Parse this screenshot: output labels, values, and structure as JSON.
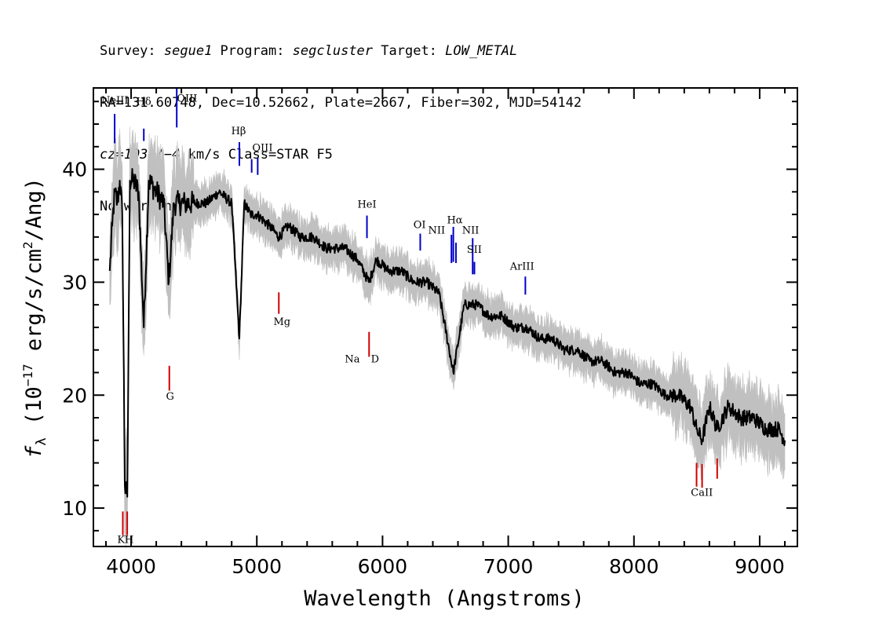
{
  "header": {
    "line1": {
      "survey_label": "Survey: ",
      "survey": "segue1",
      "program_label": " Program: ",
      "program": "segcluster",
      "target_label": " Target: ",
      "target": "LOW_METAL"
    },
    "line2": "RA=131.60748, Dec=10.52662, Plate=2667, Fiber=302, MJD=54142",
    "line3": {
      "cz": "cz=103+/−4",
      "rest": " km/s Class=STAR F5"
    },
    "line4": "No warnings."
  },
  "colors": {
    "spectrum": "#000000",
    "error": "#c0c0c0",
    "emission": "#0000c8",
    "absorption": "#d00000"
  },
  "chart_data": {
    "type": "line",
    "xlabel": "Wavelength (Angstroms)",
    "ylabel_prefix": "f",
    "ylabel_sub": "λ",
    "ylabel_open": " (10",
    "ylabel_exp": "−17",
    "ylabel_mid": " erg/s/cm",
    "ylabel_exp2": "2",
    "ylabel_close": "/Ang)",
    "xlim": [
      3700,
      9300
    ],
    "ylim": [
      6.6,
      47.2
    ],
    "xticks": [
      4000,
      5000,
      6000,
      7000,
      8000,
      9000
    ],
    "xtick_labels": [
      "4000",
      "5000",
      "6000",
      "7000",
      "8000",
      "9000"
    ],
    "yticks": [
      10,
      20,
      30,
      40
    ],
    "ytick_labels": [
      "10",
      "20",
      "30",
      "40"
    ],
    "series": [
      {
        "role": "flux",
        "x": [
          3830,
          3850,
          3870,
          3890,
          3910,
          3930,
          3950,
          3970,
          3990,
          4020,
          4060,
          4101,
          4140,
          4200,
          4260,
          4300,
          4340,
          4380,
          4430,
          4500,
          4600,
          4700,
          4800,
          4861,
          4900,
          4950,
          5000,
          5100,
          5175,
          5250,
          5350,
          5450,
          5550,
          5600,
          5700,
          5800,
          5893,
          5950,
          6050,
          6150,
          6250,
          6350,
          6450,
          6563,
          6650,
          6750,
          6850,
          6950,
          7050,
          7150,
          7250,
          7350,
          7450,
          7550,
          7650,
          7750,
          7850,
          7950,
          8050,
          8150,
          8250,
          8350,
          8450,
          8498,
          8542,
          8600,
          8662,
          8750,
          8850,
          8950,
          9050,
          9150,
          9200
        ],
        "y": [
          31,
          35,
          38,
          37,
          39,
          36,
          12,
          11,
          39,
          39,
          38,
          26,
          39,
          38,
          37,
          30,
          37,
          37,
          37,
          37,
          37,
          38,
          37,
          25,
          37,
          36,
          36,
          35,
          34,
          35,
          34,
          34,
          33,
          33,
          33,
          32,
          30,
          32,
          31,
          31,
          30,
          30,
          29,
          22,
          28,
          28,
          27,
          27,
          26,
          26,
          25,
          25,
          24,
          24,
          23,
          23,
          22,
          22,
          21,
          21,
          20,
          20,
          19,
          17,
          16,
          19,
          17,
          19,
          18,
          18,
          17,
          17,
          16
        ]
      }
    ],
    "line_ids": [
      {
        "label": "NeIII",
        "x": 3869,
        "y0": 42.3,
        "y1": 44.9,
        "kind": "emission"
      },
      {
        "label": "Hδ",
        "x": 4101,
        "y0": 42.5,
        "y1": 43.6,
        "kind": "emission"
      },
      {
        "label": "OIII",
        "x": 4363,
        "y0": 43.7,
        "y1": 47.2,
        "kind": "emission"
      },
      {
        "label": "Hβ",
        "x": 4861,
        "y0": 40.3,
        "y1": 42.4,
        "kind": "emission"
      },
      {
        "label": "OIII",
        "x": 4959,
        "y0": 39.7,
        "y1": 40.9,
        "kind": "emission"
      },
      {
        "label": "OIII",
        "x": 5007,
        "y0": 39.5,
        "y1": 41.0,
        "kind": "emission"
      },
      {
        "label": "HeI",
        "x": 5876,
        "y0": 33.9,
        "y1": 35.9,
        "kind": "emission"
      },
      {
        "label": "OI",
        "x": 6300,
        "y0": 32.8,
        "y1": 34.3,
        "kind": "emission"
      },
      {
        "label": "NII",
        "x": 6548,
        "y0": 31.7,
        "y1": 34.2,
        "kind": "emission"
      },
      {
        "label": "Hα",
        "x": 6563,
        "y0": 31.8,
        "y1": 34.9,
        "kind": "emission"
      },
      {
        "label": "NII",
        "x": 6584,
        "y0": 31.7,
        "y1": 33.5,
        "kind": "emission"
      },
      {
        "label": "SII",
        "x": 6717,
        "y0": 30.7,
        "y1": 33.9,
        "kind": "emission"
      },
      {
        "label": "SII",
        "x": 6731,
        "y0": 30.7,
        "y1": 31.8,
        "kind": "emission"
      },
      {
        "label": "ArIII",
        "x": 7136,
        "y0": 28.9,
        "y1": 30.5,
        "kind": "emission"
      },
      {
        "label": "K",
        "x": 3934,
        "y0": 7.6,
        "y1": 9.7,
        "kind": "absorption"
      },
      {
        "label": "H",
        "x": 3969,
        "y0": 7.6,
        "y1": 9.7,
        "kind": "absorption"
      },
      {
        "label": "G",
        "x": 4304,
        "y0": 20.4,
        "y1": 22.6,
        "kind": "absorption"
      },
      {
        "label": "Mg",
        "x": 5175,
        "y0": 27.2,
        "y1": 29.1,
        "kind": "absorption"
      },
      {
        "label": "Na",
        "x": 5893,
        "y0": 23.4,
        "y1": 25.6,
        "kind": "absorption"
      },
      {
        "label": "CaII",
        "x": 8498,
        "y0": 11.9,
        "y1": 14.0,
        "kind": "absorption"
      },
      {
        "label": "CaII",
        "x": 8542,
        "y0": 11.8,
        "y1": 13.9,
        "kind": "absorption"
      },
      {
        "label": "CaII",
        "x": 8662,
        "y0": 12.6,
        "y1": 14.4,
        "kind": "absorption"
      }
    ],
    "text_labels": [
      {
        "text": "NeIII",
        "x": 3870,
        "y": 45.8
      },
      {
        "text": "Hδ",
        "x": 4100,
        "y": 45.7
      },
      {
        "text": "OIII",
        "x": 4445,
        "y": 46.0
      },
      {
        "text": "Hβ",
        "x": 4855,
        "y": 43.1
      },
      {
        "text": "OIII",
        "x": 5045,
        "y": 41.6
      },
      {
        "text": "HeI",
        "x": 5876,
        "y": 36.6
      },
      {
        "text": "OI",
        "x": 6295,
        "y": 34.8
      },
      {
        "text": "NII",
        "x": 6430,
        "y": 34.3
      },
      {
        "text": "Hα",
        "x": 6575,
        "y": 35.2
      },
      {
        "text": "NII",
        "x": 6700,
        "y": 34.3
      },
      {
        "text": "SII",
        "x": 6730,
        "y": 32.6
      },
      {
        "text": "ArIII",
        "x": 7110,
        "y": 31.1
      },
      {
        "text": "Mg",
        "x": 5200,
        "y": 26.2
      },
      {
        "text": "Na",
        "x": 5760,
        "y": 22.9
      },
      {
        "text": "D",
        "x": 5940,
        "y": 22.9
      },
      {
        "text": "G",
        "x": 4310,
        "y": 19.6
      },
      {
        "text": "KH",
        "x": 3955,
        "y": 6.9
      },
      {
        "text": "CaII",
        "x": 8540,
        "y": 11.1
      }
    ]
  }
}
